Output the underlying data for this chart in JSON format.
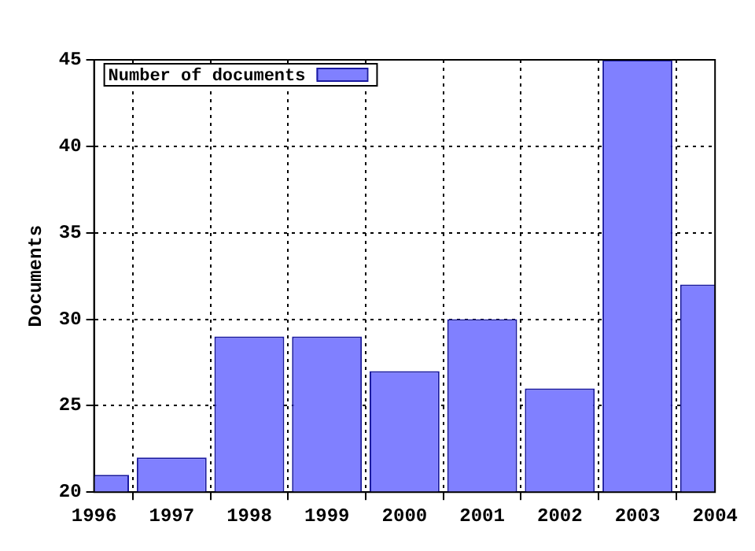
{
  "chart_data": {
    "type": "bar",
    "ylabel": "Documents",
    "x": [
      1996,
      1997,
      1998,
      1999,
      2000,
      2001,
      2002,
      2003,
      2004
    ],
    "series": [
      {
        "name": "Number of documents",
        "color": "#8080ff",
        "values": [
          21,
          22,
          29,
          29,
          27,
          30,
          26,
          45,
          32
        ]
      }
    ],
    "xlim": [
      1996,
      2004
    ],
    "xticks": [
      1996,
      1997,
      1998,
      1999,
      2000,
      2001,
      2002,
      2003,
      2004
    ],
    "ylim": [
      20,
      45
    ],
    "yticks": [
      20,
      25,
      30,
      35,
      40,
      45
    ],
    "grid": true,
    "legend": "top left"
  }
}
